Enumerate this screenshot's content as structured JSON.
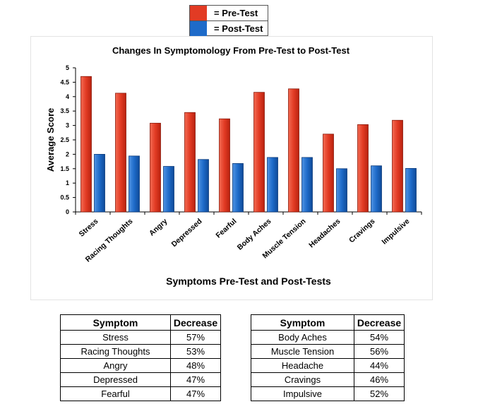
{
  "legend": {
    "items": [
      {
        "label": "= Pre-Test",
        "color": "#e23b24"
      },
      {
        "label": "= Post-Test",
        "color": "#1e6bc9"
      }
    ]
  },
  "chart_data": {
    "type": "bar",
    "title": "Changes In Symptomology From Pre-Test to Post-Test",
    "xlabel": "Symptoms Pre-Test and Post-Tests",
    "ylabel": "Average Score",
    "ylim": [
      0,
      5
    ],
    "yticks": [
      "0",
      "0.5",
      "1",
      "1.5",
      "2",
      "2.5",
      "3",
      "3.5",
      "4",
      "4.5",
      "5"
    ],
    "grid": false,
    "categories": [
      "Stress",
      "Racing Thoughts",
      "Angry",
      "Depressed",
      "Fearful",
      "Body Aches",
      "Muscle Tension",
      "Headaches",
      "Cravings",
      "Impulsive"
    ],
    "series": [
      {
        "name": "Pre-Test",
        "color": "#e23b24",
        "values": [
          4.7,
          4.12,
          3.08,
          3.45,
          3.23,
          4.15,
          4.27,
          2.7,
          3.03,
          3.18
        ]
      },
      {
        "name": "Post-Test",
        "color": "#1e6bc9",
        "values": [
          2.0,
          1.94,
          1.58,
          1.82,
          1.68,
          1.89,
          1.89,
          1.5,
          1.6,
          1.51
        ]
      }
    ]
  },
  "tables": {
    "left": {
      "headers": [
        "Symptom",
        "Decrease"
      ],
      "rows": [
        [
          "Stress",
          "57%"
        ],
        [
          "Racing Thoughts",
          "53%"
        ],
        [
          "Angry",
          "48%"
        ],
        [
          "Depressed",
          "47%"
        ],
        [
          "Fearful",
          "47%"
        ]
      ]
    },
    "right": {
      "headers": [
        "Symptom",
        "Decrease"
      ],
      "rows": [
        [
          "Body Aches",
          "54%"
        ],
        [
          "Muscle Tension",
          "56%"
        ],
        [
          "Headache",
          "44%"
        ],
        [
          "Cravings",
          "46%"
        ],
        [
          "Impulsive",
          "52%"
        ]
      ]
    }
  }
}
